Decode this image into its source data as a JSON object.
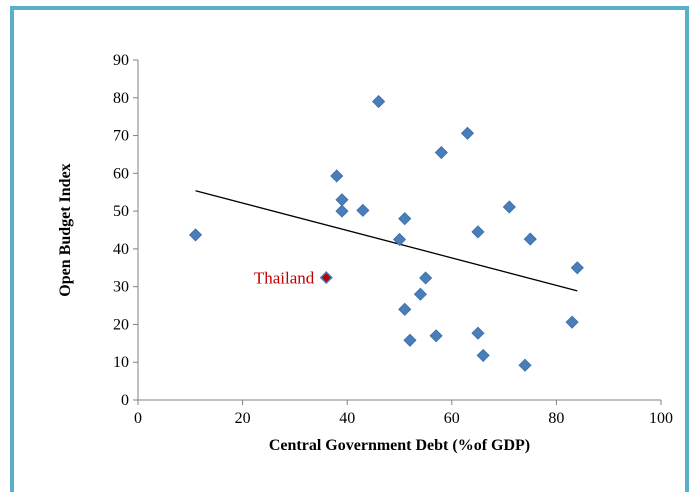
{
  "chart_data": {
    "type": "scatter",
    "xlabel": "Central Government Debt (%of GDP)",
    "ylabel": "Open Budget Index",
    "xlim": [
      0,
      100
    ],
    "ylim": [
      0,
      90
    ],
    "x_ticks": [
      0,
      20,
      40,
      60,
      80,
      100
    ],
    "y_ticks": [
      0,
      10,
      20,
      30,
      40,
      50,
      60,
      70,
      80,
      90
    ],
    "grid": false,
    "legend": "none",
    "marker_color": "#4a7ebb",
    "highlight_color": "#c00000",
    "trendline_color": "#000000",
    "points": [
      {
        "x": 11,
        "y": 43.7
      },
      {
        "x": 38,
        "y": 59.3
      },
      {
        "x": 39,
        "y": 53
      },
      {
        "x": 39,
        "y": 50
      },
      {
        "x": 43,
        "y": 50.2
      },
      {
        "x": 46,
        "y": 79
      },
      {
        "x": 50,
        "y": 42.5
      },
      {
        "x": 51,
        "y": 48
      },
      {
        "x": 51,
        "y": 24
      },
      {
        "x": 52,
        "y": 15.8
      },
      {
        "x": 54,
        "y": 28
      },
      {
        "x": 55,
        "y": 32.3
      },
      {
        "x": 57,
        "y": 17
      },
      {
        "x": 58,
        "y": 65.5
      },
      {
        "x": 63,
        "y": 70.6
      },
      {
        "x": 65,
        "y": 44.5
      },
      {
        "x": 65,
        "y": 17.7
      },
      {
        "x": 66,
        "y": 11.8
      },
      {
        "x": 71,
        "y": 51.1
      },
      {
        "x": 74,
        "y": 9.2
      },
      {
        "x": 75,
        "y": 42.6
      },
      {
        "x": 83,
        "y": 20.6
      },
      {
        "x": 84,
        "y": 35
      }
    ],
    "highlight": {
      "label": "Thailand",
      "x": 36,
      "y": 32.4
    },
    "trendline": {
      "x": [
        11,
        84
      ],
      "y": [
        55.4,
        28.9
      ]
    }
  }
}
